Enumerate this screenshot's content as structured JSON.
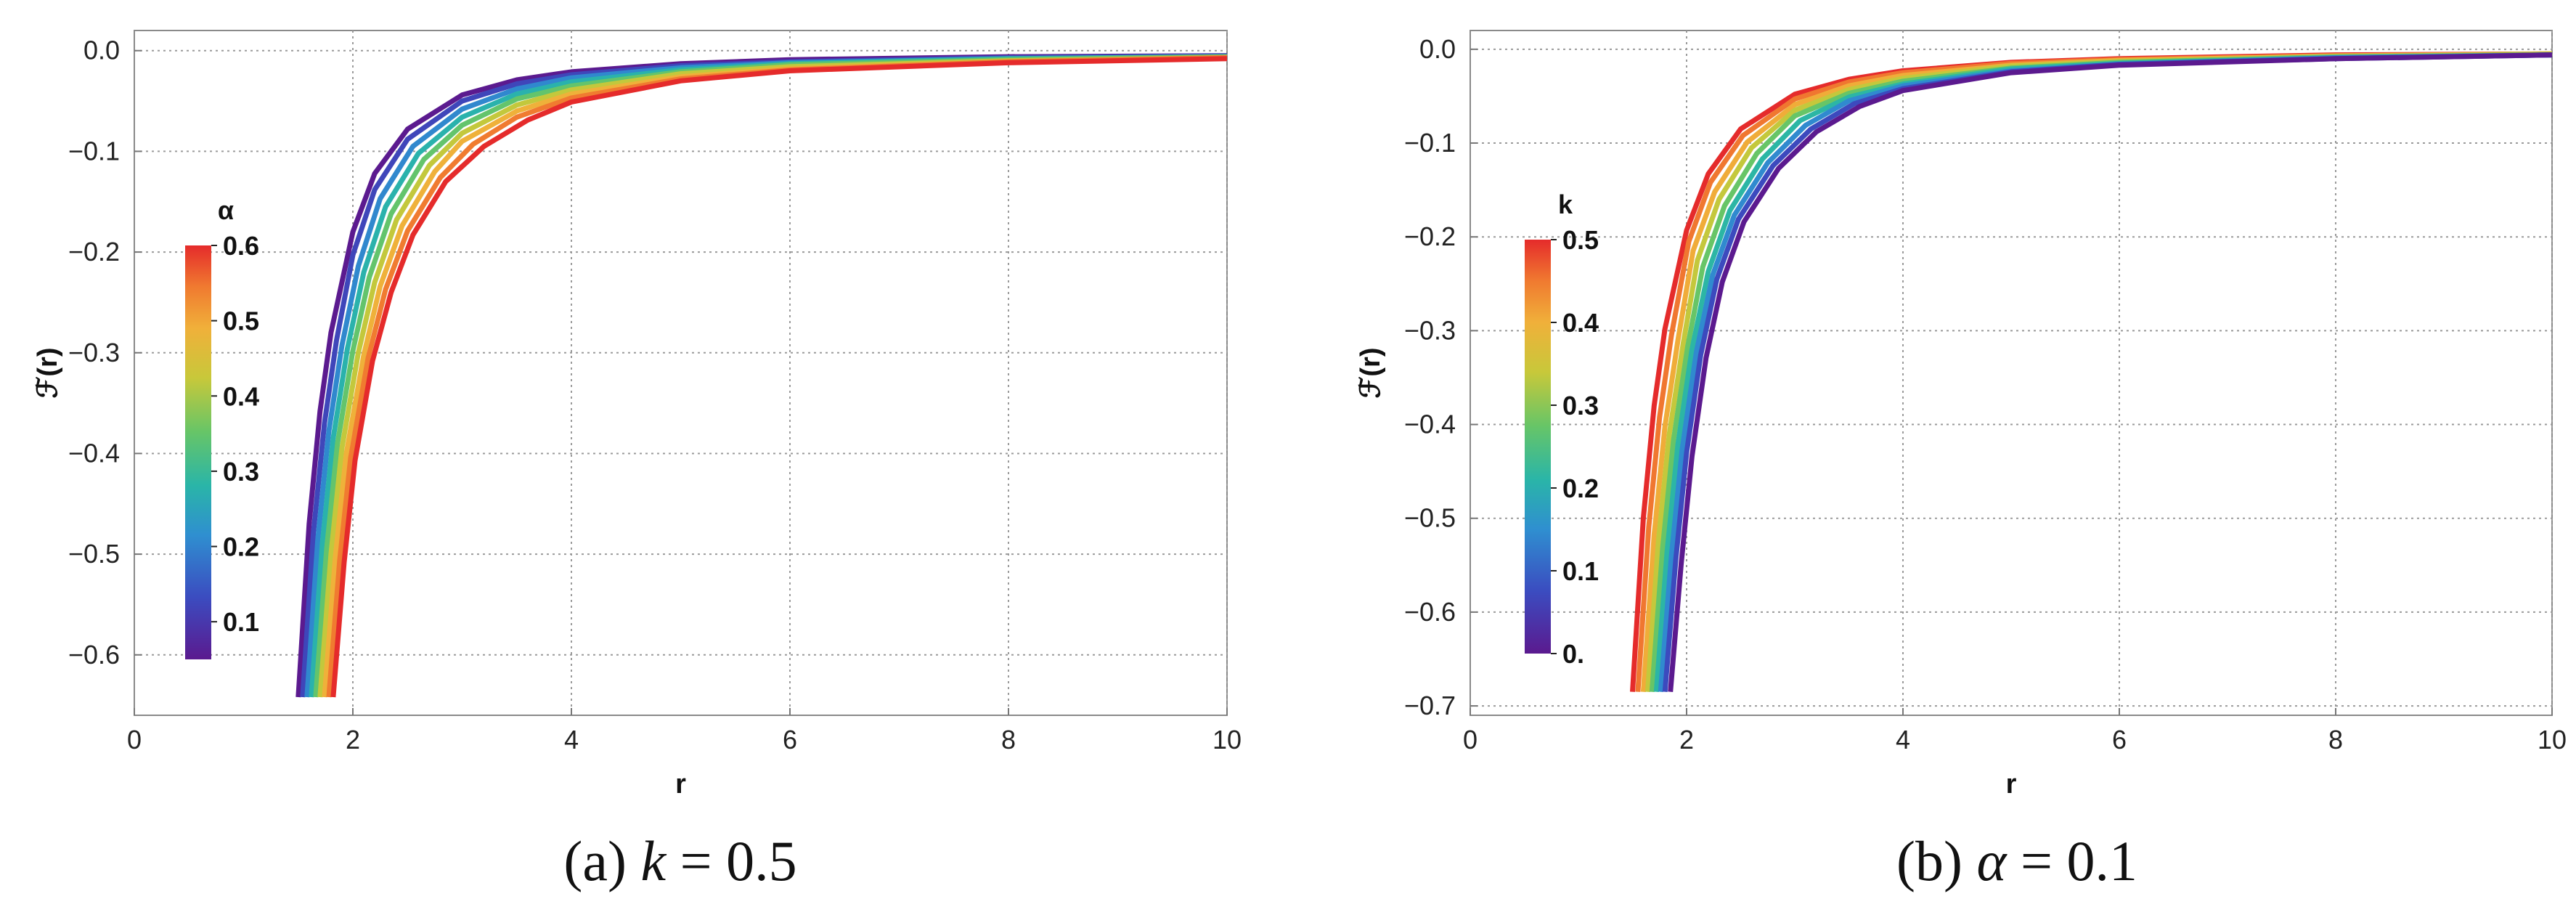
{
  "chart_data": [
    {
      "type": "line",
      "panel": "a",
      "caption_prefix": "(a) ",
      "caption_var": "k",
      "caption_rest": " = 0.5",
      "xlabel": "r",
      "ylabel": "ℱ(r)",
      "xlim": [
        0,
        10
      ],
      "ylim": [
        -0.66,
        0.02
      ],
      "xticks": [
        "0",
        "2",
        "4",
        "6",
        "8",
        "10"
      ],
      "yticks": [
        "0.0",
        "-0.1",
        "-0.2",
        "-0.3",
        "-0.4",
        "-0.5",
        "-0.6"
      ],
      "grid": true,
      "legend": {
        "title": "α",
        "placement": "left",
        "ticks": [
          "0.6",
          "0.5",
          "0.4",
          "0.3",
          "0.2",
          "0.1"
        ],
        "range": [
          0.05,
          0.6
        ]
      },
      "colormap": [
        "#5b1a8f",
        "#3b4cc0",
        "#2f8fd0",
        "#2ab5a8",
        "#67c567",
        "#c8c83a",
        "#f0b03a",
        "#f07a30",
        "#e52b2b"
      ],
      "series": [
        {
          "param": 0.05,
          "x": [
            1.5,
            1.6,
            1.7,
            1.8,
            2.0,
            2.2,
            2.5,
            3.0,
            3.5,
            4.0,
            5.0,
            6.0,
            8.0,
            10.0
          ],
          "y": [
            -0.642,
            -0.47,
            -0.358,
            -0.28,
            -0.18,
            -0.122,
            -0.078,
            -0.044,
            -0.029,
            -0.021,
            -0.013,
            -0.009,
            -0.006,
            -0.005
          ]
        },
        {
          "param": 0.11,
          "x": [
            1.54,
            1.64,
            1.74,
            1.85,
            2.0,
            2.2,
            2.5,
            3.0,
            3.5,
            4.0,
            5.0,
            6.0,
            8.0,
            10.0
          ],
          "y": [
            -0.642,
            -0.478,
            -0.37,
            -0.288,
            -0.203,
            -0.138,
            -0.088,
            -0.05,
            -0.033,
            -0.024,
            -0.015,
            -0.011,
            -0.007,
            -0.005
          ]
        },
        {
          "param": 0.18,
          "x": [
            1.58,
            1.68,
            1.78,
            1.9,
            2.05,
            2.25,
            2.55,
            3.0,
            3.5,
            4.0,
            5.0,
            6.0,
            8.0,
            10.0
          ],
          "y": [
            -0.642,
            -0.485,
            -0.378,
            -0.293,
            -0.214,
            -0.147,
            -0.095,
            -0.058,
            -0.038,
            -0.027,
            -0.017,
            -0.012,
            -0.008,
            -0.006
          ]
        },
        {
          "param": 0.25,
          "x": [
            1.62,
            1.72,
            1.82,
            1.95,
            2.1,
            2.3,
            2.6,
            3.0,
            3.5,
            4.0,
            5.0,
            6.0,
            8.0,
            10.0
          ],
          "y": [
            -0.642,
            -0.49,
            -0.385,
            -0.296,
            -0.22,
            -0.155,
            -0.102,
            -0.066,
            -0.043,
            -0.031,
            -0.019,
            -0.013,
            -0.008,
            -0.006
          ]
        },
        {
          "param": 0.32,
          "x": [
            1.66,
            1.76,
            1.86,
            2.0,
            2.15,
            2.35,
            2.65,
            3.0,
            3.5,
            4.0,
            5.0,
            6.0,
            8.0,
            10.0
          ],
          "y": [
            -0.642,
            -0.495,
            -0.39,
            -0.298,
            -0.225,
            -0.162,
            -0.108,
            -0.074,
            -0.048,
            -0.035,
            -0.021,
            -0.014,
            -0.009,
            -0.006
          ]
        },
        {
          "param": 0.39,
          "x": [
            1.7,
            1.8,
            1.9,
            2.05,
            2.2,
            2.4,
            2.7,
            3.0,
            3.5,
            4.0,
            5.0,
            6.0,
            8.0,
            10.0
          ],
          "y": [
            -0.642,
            -0.5,
            -0.395,
            -0.3,
            -0.23,
            -0.168,
            -0.114,
            -0.082,
            -0.054,
            -0.039,
            -0.023,
            -0.016,
            -0.01,
            -0.007
          ]
        },
        {
          "param": 0.46,
          "x": [
            1.74,
            1.84,
            1.94,
            2.1,
            2.25,
            2.45,
            2.75,
            3.0,
            3.5,
            4.0,
            5.0,
            6.0,
            8.0,
            10.0
          ],
          "y": [
            -0.642,
            -0.503,
            -0.4,
            -0.302,
            -0.234,
            -0.174,
            -0.12,
            -0.09,
            -0.06,
            -0.043,
            -0.026,
            -0.018,
            -0.011,
            -0.007
          ]
        },
        {
          "param": 0.53,
          "x": [
            1.78,
            1.88,
            1.98,
            2.14,
            2.3,
            2.5,
            2.8,
            3.1,
            3.5,
            4.0,
            5.0,
            6.0,
            8.0,
            10.0
          ],
          "y": [
            -0.642,
            -0.506,
            -0.404,
            -0.305,
            -0.237,
            -0.179,
            -0.126,
            -0.093,
            -0.066,
            -0.047,
            -0.028,
            -0.019,
            -0.011,
            -0.007
          ]
        },
        {
          "param": 0.6,
          "x": [
            1.82,
            1.92,
            2.02,
            2.18,
            2.35,
            2.55,
            2.85,
            3.2,
            3.6,
            4.0,
            5.0,
            6.0,
            8.0,
            10.0
          ],
          "y": [
            -0.642,
            -0.508,
            -0.407,
            -0.308,
            -0.24,
            -0.183,
            -0.13,
            -0.095,
            -0.069,
            -0.051,
            -0.03,
            -0.02,
            -0.012,
            -0.008
          ]
        }
      ]
    },
    {
      "type": "line",
      "panel": "b",
      "caption_prefix": "(b) ",
      "caption_var": "α",
      "caption_rest": " = 0.1",
      "xlabel": "r",
      "ylabel": "ℱ(r)",
      "xlim": [
        0,
        10
      ],
      "ylim": [
        -0.71,
        0.02
      ],
      "xticks": [
        "0",
        "2",
        "4",
        "6",
        "8",
        "10"
      ],
      "yticks": [
        "0.0",
        "-0.1",
        "-0.2",
        "-0.3",
        "-0.4",
        "-0.5",
        "-0.6",
        "-0.7"
      ],
      "grid": true,
      "legend": {
        "title": "k",
        "placement": "left",
        "ticks": [
          "0.5",
          "0.4",
          "0.3",
          "0.2",
          "0.1",
          "0."
        ],
        "range": [
          0,
          0.5
        ]
      },
      "colormap": [
        "#5b1a8f",
        "#3b4cc0",
        "#2f8fd0",
        "#2ab5a8",
        "#67c567",
        "#c8c83a",
        "#f0b03a",
        "#f07a30",
        "#e52b2b"
      ],
      "series": [
        {
          "param": 0.5,
          "x": [
            1.5,
            1.6,
            1.7,
            1.8,
            2.0,
            2.2,
            2.5,
            3.0,
            3.5,
            4.0,
            5.0,
            6.0,
            8.0,
            10.0
          ],
          "y": [
            -0.685,
            -0.5,
            -0.38,
            -0.298,
            -0.193,
            -0.133,
            -0.085,
            -0.048,
            -0.032,
            -0.023,
            -0.014,
            -0.01,
            -0.006,
            -0.005
          ]
        },
        {
          "param": 0.44,
          "x": [
            1.55,
            1.65,
            1.75,
            1.86,
            2.02,
            2.22,
            2.52,
            3.0,
            3.5,
            4.0,
            5.0,
            6.0,
            8.0,
            10.0
          ],
          "y": [
            -0.685,
            -0.51,
            -0.392,
            -0.305,
            -0.205,
            -0.142,
            -0.092,
            -0.053,
            -0.035,
            -0.025,
            -0.015,
            -0.011,
            -0.007,
            -0.005
          ]
        },
        {
          "param": 0.38,
          "x": [
            1.6,
            1.7,
            1.8,
            1.92,
            2.06,
            2.26,
            2.56,
            3.0,
            3.5,
            4.0,
            5.0,
            6.0,
            8.0,
            10.0
          ],
          "y": [
            -0.685,
            -0.518,
            -0.402,
            -0.31,
            -0.215,
            -0.152,
            -0.099,
            -0.059,
            -0.039,
            -0.028,
            -0.017,
            -0.012,
            -0.007,
            -0.005
          ]
        },
        {
          "param": 0.31,
          "x": [
            1.64,
            1.74,
            1.84,
            1.97,
            2.1,
            2.3,
            2.6,
            3.0,
            3.5,
            4.0,
            5.0,
            6.0,
            8.0,
            10.0
          ],
          "y": [
            -0.685,
            -0.524,
            -0.41,
            -0.313,
            -0.225,
            -0.16,
            -0.105,
            -0.065,
            -0.043,
            -0.031,
            -0.018,
            -0.013,
            -0.008,
            -0.005
          ]
        },
        {
          "param": 0.25,
          "x": [
            1.68,
            1.78,
            1.88,
            2.01,
            2.15,
            2.35,
            2.65,
            3.0,
            3.5,
            4.0,
            5.0,
            6.0,
            8.0,
            10.0
          ],
          "y": [
            -0.685,
            -0.53,
            -0.416,
            -0.317,
            -0.232,
            -0.167,
            -0.111,
            -0.071,
            -0.047,
            -0.034,
            -0.02,
            -0.014,
            -0.008,
            -0.006
          ]
        },
        {
          "param": 0.19,
          "x": [
            1.72,
            1.82,
            1.92,
            2.05,
            2.2,
            2.4,
            2.7,
            3.05,
            3.5,
            4.0,
            5.0,
            6.0,
            8.0,
            10.0
          ],
          "y": [
            -0.685,
            -0.535,
            -0.421,
            -0.32,
            -0.237,
            -0.172,
            -0.117,
            -0.076,
            -0.051,
            -0.037,
            -0.021,
            -0.015,
            -0.009,
            -0.006
          ]
        },
        {
          "param": 0.12,
          "x": [
            1.76,
            1.86,
            1.96,
            2.09,
            2.24,
            2.44,
            2.75,
            3.1,
            3.5,
            4.0,
            5.0,
            6.0,
            8.0,
            10.0
          ],
          "y": [
            -0.685,
            -0.54,
            -0.426,
            -0.323,
            -0.241,
            -0.177,
            -0.121,
            -0.081,
            -0.055,
            -0.039,
            -0.023,
            -0.016,
            -0.009,
            -0.006
          ]
        },
        {
          "param": 0.06,
          "x": [
            1.8,
            1.9,
            2.0,
            2.13,
            2.28,
            2.48,
            2.8,
            3.15,
            3.55,
            4.0,
            5.0,
            6.0,
            8.0,
            10.0
          ],
          "y": [
            -0.685,
            -0.544,
            -0.43,
            -0.326,
            -0.245,
            -0.181,
            -0.124,
            -0.085,
            -0.058,
            -0.042,
            -0.024,
            -0.016,
            -0.01,
            -0.006
          ]
        },
        {
          "param": 0.0,
          "x": [
            1.85,
            1.95,
            2.05,
            2.18,
            2.33,
            2.53,
            2.85,
            3.2,
            3.6,
            4.0,
            5.0,
            6.0,
            8.0,
            10.0
          ],
          "y": [
            -0.685,
            -0.548,
            -0.434,
            -0.329,
            -0.248,
            -0.184,
            -0.127,
            -0.088,
            -0.061,
            -0.044,
            -0.025,
            -0.017,
            -0.01,
            -0.006
          ]
        }
      ]
    }
  ]
}
